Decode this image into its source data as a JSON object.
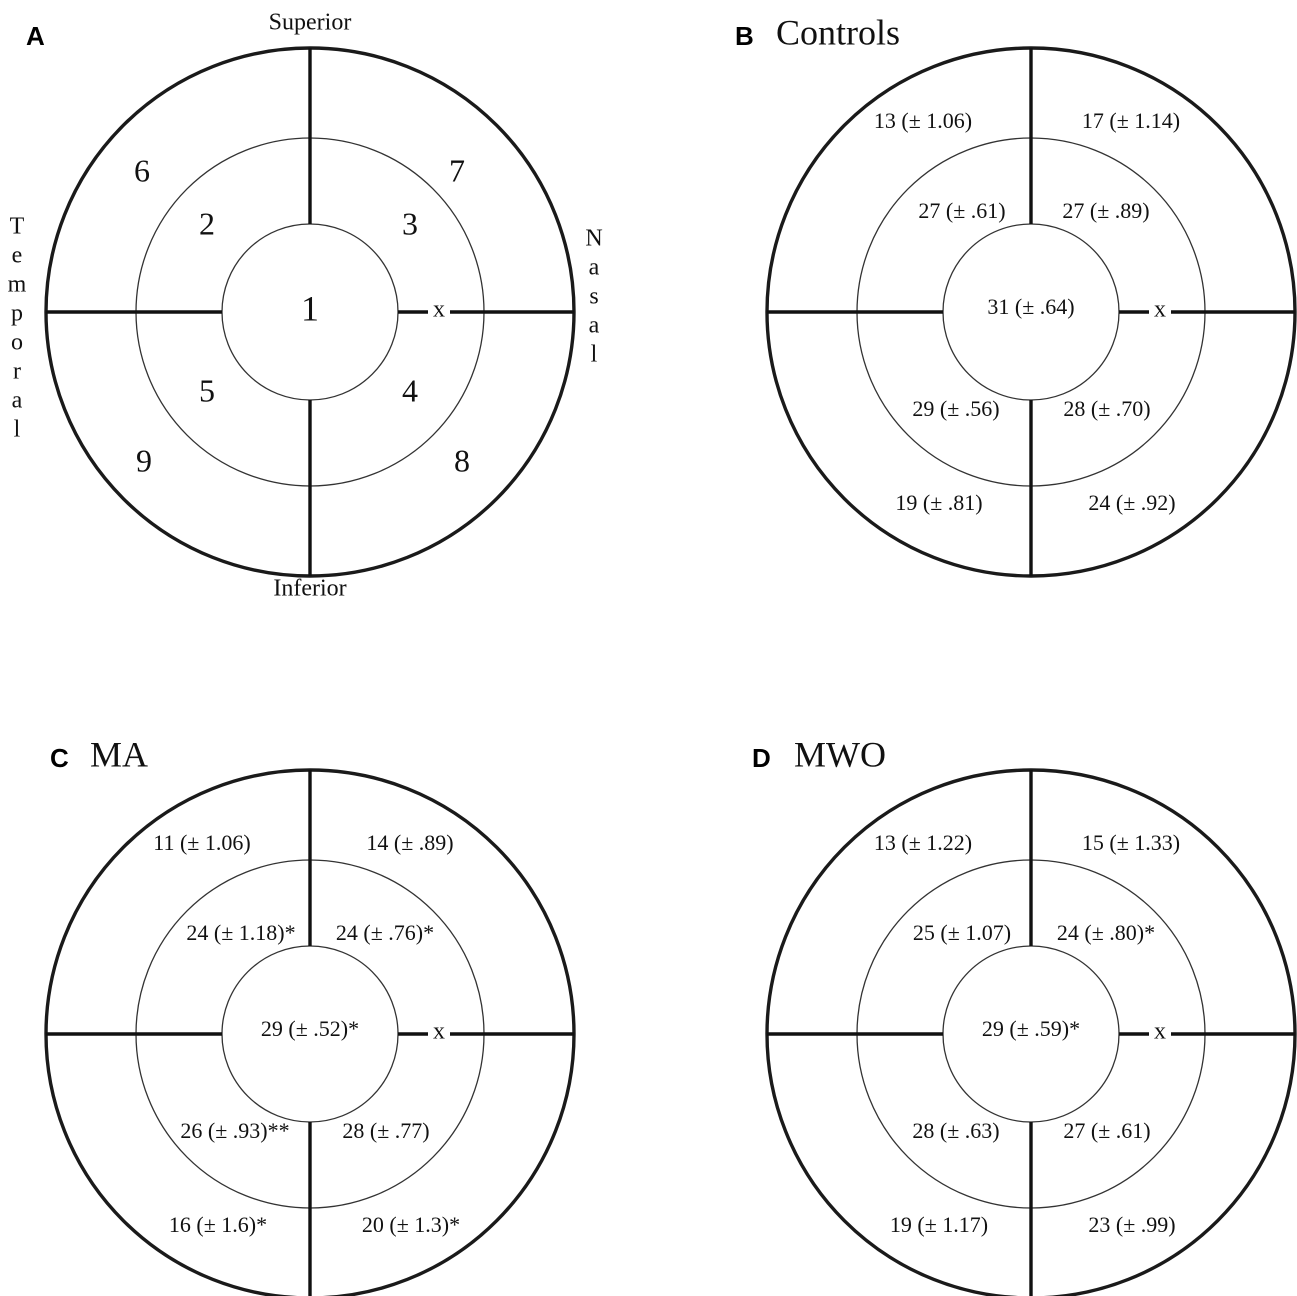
{
  "orientation": {
    "superior": "Superior",
    "inferior": "Inferior",
    "temporal": [
      "T",
      "e",
      "m",
      "p",
      "o",
      "r",
      "a",
      "l"
    ],
    "nasal": [
      "N",
      "a",
      "s",
      "a",
      "l"
    ],
    "optic_disc_marker": "x"
  },
  "panels": [
    {
      "letter": "A",
      "title": "",
      "sectors": {
        "center": "1",
        "inner_st": "2",
        "inner_sn": "3",
        "inner_in": "4",
        "inner_it": "5",
        "outer_st": "6",
        "outer_sn": "7",
        "outer_in": "8",
        "outer_it": "9"
      }
    },
    {
      "letter": "B",
      "title": "Controls",
      "sectors": {
        "center": "31 (± .64)",
        "inner_st": "27 (± .61)",
        "inner_sn": "27 (± .89)",
        "inner_in": "28 (± .70)",
        "inner_it": "29 (± .56)",
        "outer_st": "13 (± 1.06)",
        "outer_sn": "17 (± 1.14)",
        "outer_in": "24 (± .92)",
        "outer_it": "19 (± .81)"
      }
    },
    {
      "letter": "C",
      "title": "MA",
      "sectors": {
        "center": "29 (± .52)*",
        "inner_st": "24 (± 1.18)*",
        "inner_sn": "24 (± .76)*",
        "inner_in": "28 (± .77)",
        "inner_it": "26 (± .93)**",
        "outer_st": "11 (± 1.06)",
        "outer_sn": "14 (± .89)",
        "outer_in": "20 (± 1.3)*",
        "outer_it": "16 (± 1.6)*"
      }
    },
    {
      "letter": "D",
      "title": "MWO",
      "sectors": {
        "center": "29 (± .59)*",
        "inner_st": "25 (± 1.07)",
        "inner_sn": "24 (± .80)*",
        "inner_in": "27 (± .61)",
        "inner_it": "28 (± .63)",
        "outer_st": "13 (± 1.22)",
        "outer_sn": "15 (± 1.33)",
        "outer_in": "23 (± .99)",
        "outer_it": "19 (± 1.17)"
      }
    }
  ]
}
